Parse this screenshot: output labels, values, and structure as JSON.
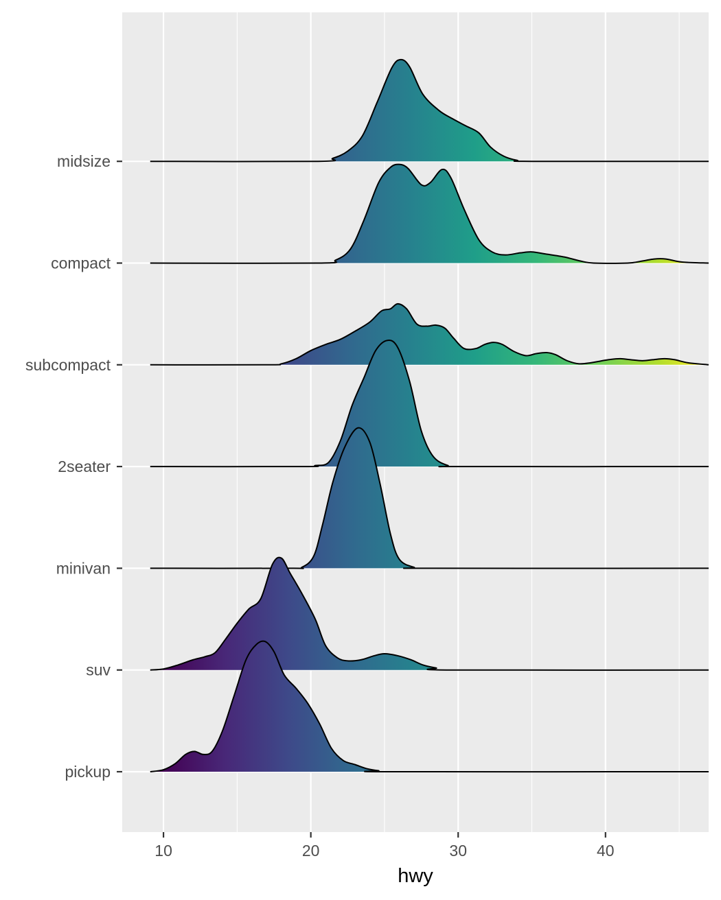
{
  "chart_data": {
    "type": "ridgeline",
    "title": "",
    "xlabel": "hwy",
    "ylabel": "",
    "xlim": [
      7.2,
      47.0
    ],
    "x_ticks": [
      10,
      20,
      30,
      40
    ],
    "grid": true,
    "legend": "none",
    "fill_scale": "viridis by hwy",
    "colormap": [
      "#440154",
      "#482878",
      "#3e4989",
      "#31688e",
      "#26828e",
      "#1f9e89",
      "#35b779",
      "#6ece58",
      "#b5de2b",
      "#fde725"
    ],
    "colormap_domain": [
      10,
      48
    ],
    "categories": [
      "midsize",
      "compact",
      "subcompact",
      "2seater",
      "minivan",
      "suv",
      "pickup"
    ],
    "series": [
      {
        "name": "midsize",
        "points": [
          [
            9.1,
            0
          ],
          [
            20.5,
            0
          ],
          [
            21.5,
            0.03
          ],
          [
            22.5,
            0.1
          ],
          [
            23.5,
            0.25
          ],
          [
            24.5,
            0.58
          ],
          [
            25.5,
            0.92
          ],
          [
            26.1,
            1.0
          ],
          [
            26.7,
            0.93
          ],
          [
            27.6,
            0.66
          ],
          [
            28.7,
            0.5
          ],
          [
            29.6,
            0.42
          ],
          [
            30.5,
            0.35
          ],
          [
            31.4,
            0.28
          ],
          [
            32.2,
            0.14
          ],
          [
            33.1,
            0.05
          ],
          [
            34.0,
            0.01
          ],
          [
            35.0,
            0
          ],
          [
            47.0,
            0
          ]
        ]
      },
      {
        "name": "compact",
        "points": [
          [
            9.1,
            0
          ],
          [
            20.5,
            0
          ],
          [
            21.7,
            0.03
          ],
          [
            22.7,
            0.14
          ],
          [
            23.6,
            0.42
          ],
          [
            24.6,
            0.79
          ],
          [
            25.4,
            0.94
          ],
          [
            26.0,
            0.97
          ],
          [
            26.6,
            0.93
          ],
          [
            27.5,
            0.77
          ],
          [
            28.1,
            0.79
          ],
          [
            28.9,
            0.92
          ],
          [
            29.5,
            0.84
          ],
          [
            30.4,
            0.53
          ],
          [
            31.4,
            0.23
          ],
          [
            32.3,
            0.11
          ],
          [
            33.2,
            0.08
          ],
          [
            34.2,
            0.1
          ],
          [
            35.0,
            0.11
          ],
          [
            35.9,
            0.09
          ],
          [
            37.2,
            0.06
          ],
          [
            38.3,
            0.02
          ],
          [
            39.2,
            0
          ],
          [
            41.5,
            0
          ],
          [
            42.5,
            0.02
          ],
          [
            43.3,
            0.04
          ],
          [
            44.1,
            0.04
          ],
          [
            45.2,
            0.01
          ],
          [
            47.0,
            0
          ]
        ]
      },
      {
        "name": "subcompact",
        "points": [
          [
            9.1,
            0
          ],
          [
            17.0,
            0
          ],
          [
            18.0,
            0.01
          ],
          [
            19.0,
            0.06
          ],
          [
            20.0,
            0.14
          ],
          [
            21.0,
            0.2
          ],
          [
            22.0,
            0.25
          ],
          [
            23.0,
            0.33
          ],
          [
            24.0,
            0.42
          ],
          [
            24.8,
            0.53
          ],
          [
            25.4,
            0.55
          ],
          [
            25.9,
            0.6
          ],
          [
            26.5,
            0.55
          ],
          [
            27.2,
            0.4
          ],
          [
            27.9,
            0.38
          ],
          [
            28.5,
            0.39
          ],
          [
            29.1,
            0.36
          ],
          [
            29.7,
            0.26
          ],
          [
            30.4,
            0.16
          ],
          [
            31.2,
            0.16
          ],
          [
            31.8,
            0.2
          ],
          [
            32.4,
            0.22
          ],
          [
            33.0,
            0.2
          ],
          [
            33.8,
            0.13
          ],
          [
            34.6,
            0.09
          ],
          [
            35.3,
            0.11
          ],
          [
            36.0,
            0.12
          ],
          [
            36.6,
            0.1
          ],
          [
            37.4,
            0.04
          ],
          [
            38.2,
            0.01
          ],
          [
            39.0,
            0.02
          ],
          [
            40.2,
            0.05
          ],
          [
            41.0,
            0.06
          ],
          [
            41.7,
            0.05
          ],
          [
            42.5,
            0.04
          ],
          [
            43.2,
            0.05
          ],
          [
            44.0,
            0.06
          ],
          [
            44.7,
            0.05
          ],
          [
            45.6,
            0.02
          ],
          [
            47.0,
            0
          ]
        ]
      },
      {
        "name": "2seater",
        "points": [
          [
            9.1,
            0
          ],
          [
            19.5,
            0
          ],
          [
            20.3,
            0.01
          ],
          [
            21.2,
            0.04
          ],
          [
            22.0,
            0.25
          ],
          [
            22.8,
            0.6
          ],
          [
            23.6,
            0.87
          ],
          [
            24.4,
            1.14
          ],
          [
            25.2,
            1.24
          ],
          [
            25.9,
            1.17
          ],
          [
            26.7,
            0.84
          ],
          [
            27.5,
            0.35
          ],
          [
            28.3,
            0.1
          ],
          [
            29.3,
            0.01
          ],
          [
            30.2,
            0
          ],
          [
            47.0,
            0
          ]
        ]
      },
      {
        "name": "minivan",
        "points": [
          [
            9.1,
            0
          ],
          [
            18.5,
            0
          ],
          [
            19.4,
            0.01
          ],
          [
            20.2,
            0.12
          ],
          [
            20.8,
            0.43
          ],
          [
            21.5,
            0.85
          ],
          [
            22.3,
            1.19
          ],
          [
            23.2,
            1.38
          ],
          [
            24.0,
            1.24
          ],
          [
            24.7,
            0.83
          ],
          [
            25.4,
            0.34
          ],
          [
            26.0,
            0.09
          ],
          [
            27.0,
            0.01
          ],
          [
            28.0,
            0
          ],
          [
            47.0,
            0
          ]
        ]
      },
      {
        "name": "suv",
        "points": [
          [
            9.1,
            0
          ],
          [
            10.0,
            0.01
          ],
          [
            11.0,
            0.05
          ],
          [
            12.0,
            0.1
          ],
          [
            12.8,
            0.13
          ],
          [
            13.5,
            0.17
          ],
          [
            14.2,
            0.3
          ],
          [
            15.0,
            0.46
          ],
          [
            15.8,
            0.6
          ],
          [
            16.6,
            0.7
          ],
          [
            17.4,
            1.04
          ],
          [
            18.0,
            1.1
          ],
          [
            18.6,
            0.95
          ],
          [
            19.4,
            0.75
          ],
          [
            20.3,
            0.5
          ],
          [
            21.0,
            0.24
          ],
          [
            21.8,
            0.12
          ],
          [
            22.5,
            0.09
          ],
          [
            23.4,
            0.1
          ],
          [
            24.3,
            0.14
          ],
          [
            25.0,
            0.16
          ],
          [
            25.9,
            0.14
          ],
          [
            26.8,
            0.1
          ],
          [
            27.6,
            0.05
          ],
          [
            28.5,
            0.02
          ],
          [
            29.5,
            0
          ],
          [
            47.0,
            0
          ]
        ]
      },
      {
        "name": "pickup",
        "points": [
          [
            9.1,
            0
          ],
          [
            10.0,
            0.02
          ],
          [
            10.8,
            0.08
          ],
          [
            11.5,
            0.17
          ],
          [
            12.1,
            0.2
          ],
          [
            12.7,
            0.17
          ],
          [
            13.3,
            0.2
          ],
          [
            14.0,
            0.4
          ],
          [
            14.8,
            0.75
          ],
          [
            15.6,
            1.1
          ],
          [
            16.3,
            1.25
          ],
          [
            16.9,
            1.28
          ],
          [
            17.5,
            1.18
          ],
          [
            18.2,
            0.95
          ],
          [
            19.0,
            0.82
          ],
          [
            19.8,
            0.67
          ],
          [
            20.6,
            0.47
          ],
          [
            21.4,
            0.23
          ],
          [
            22.2,
            0.11
          ],
          [
            23.0,
            0.07
          ],
          [
            23.8,
            0.03
          ],
          [
            24.6,
            0.01
          ],
          [
            25.5,
            0
          ],
          [
            47.0,
            0
          ]
        ]
      }
    ]
  }
}
